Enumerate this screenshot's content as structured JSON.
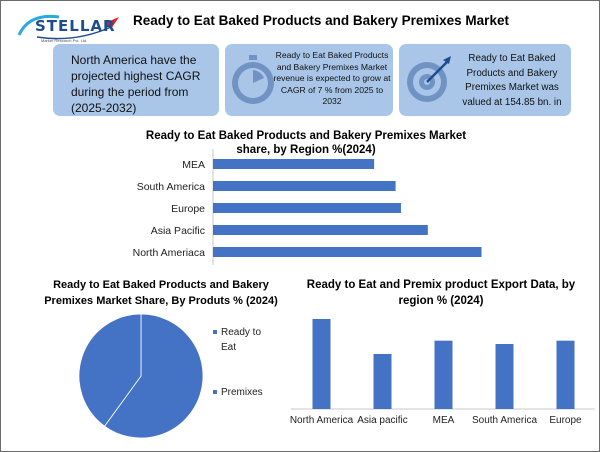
{
  "logo": {
    "name": "STELLAR",
    "tagline": "Market Research Pvt. Ltd."
  },
  "header": {
    "title": "Ready to Eat Baked Products and Bakery Premixes Market"
  },
  "cards": [
    {
      "text": "North America have the projected highest CAGR during the period from (2025-2032)",
      "icon": "",
      "color": "#a9c6e8"
    },
    {
      "text": "Ready to Eat Baked Products and Bakery Premixes Market revenue is expected to grow at CAGR of 7 % from 2025 to 2032",
      "icon": "stopwatch-icon",
      "color": "#a9c6e8"
    },
    {
      "text": "Ready to Eat Baked Products and Bakery Premixes Market was valued at 154.85 bn. in",
      "icon": "target-icon",
      "color": "#a9c6e8"
    }
  ],
  "chart_data": [
    {
      "type": "bar",
      "orientation": "horizontal",
      "title": "Ready to Eat Baked Products and Bakery Premixes Market share, by Region %(2024)",
      "categories": [
        "MEA",
        "South America",
        "Europe",
        "Asia Pacific",
        "North Ameriaca"
      ],
      "values": [
        15,
        17,
        17.5,
        20,
        25
      ],
      "xlim": [
        0,
        27
      ],
      "color": "#4472c4",
      "grid": false,
      "legend": "none"
    },
    {
      "type": "pie",
      "title": "Ready to Eat Baked Products and Bakery Premixes Market Share, By Produts % (2024)",
      "labels": [
        "Ready to Eat",
        "Premixes"
      ],
      "values": [
        60,
        40
      ],
      "colors": [
        "#4472c4",
        "#4472c4"
      ],
      "legend": "right"
    },
    {
      "type": "bar",
      "orientation": "vertical",
      "title": "Ready to Eat and Premix product Export Data, by region % (2024)",
      "categories": [
        "North America",
        "Asia pacific",
        "MEA",
        "South America",
        "Europe"
      ],
      "values": [
        27,
        16.5,
        20.5,
        19.5,
        20.5
      ],
      "ylim": [
        0,
        30
      ],
      "color": "#4472c4",
      "grid": false,
      "legend": "none"
    }
  ]
}
